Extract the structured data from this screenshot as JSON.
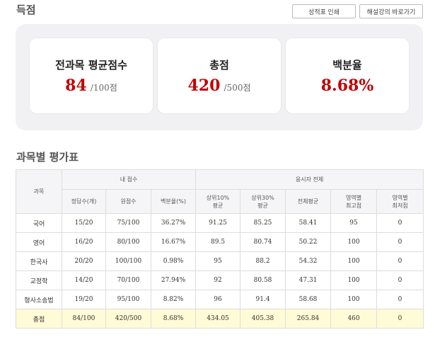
{
  "header": {
    "title": "득점",
    "print_button": "성적표 인쇄",
    "solution_button": "해설강의 바로가기"
  },
  "summary": [
    {
      "label": "전과목 평균점수",
      "value": "84",
      "unit": "/100점"
    },
    {
      "label": "총점",
      "value": "420",
      "unit": "/500점"
    },
    {
      "label": "백분율",
      "value": "8.68%",
      "unit": ""
    }
  ],
  "eval": {
    "title": "과목별 평가표",
    "group_subject": "과목",
    "group_my": "내 점수",
    "group_all": "응시자 전체",
    "columns": [
      "정답수(개)",
      "원점수",
      "백분율(%)",
      "상위10%\n평균",
      "상위30%\n평균",
      "전체평균",
      "영역별\n최고점",
      "영역별\n최저점"
    ],
    "rows": [
      [
        "국어",
        "15/20",
        "75/100",
        "36.27%",
        "91.25",
        "85.25",
        "58.41",
        "95",
        "0"
      ],
      [
        "영어",
        "16/20",
        "80/100",
        "16.67%",
        "89.5",
        "80.74",
        "50.22",
        "100",
        "0"
      ],
      [
        "한국사",
        "20/20",
        "100/100",
        "0.98%",
        "95",
        "88.2",
        "54.32",
        "100",
        "0"
      ],
      [
        "교정학",
        "14/20",
        "70/100",
        "27.94%",
        "92",
        "80.58",
        "47.31",
        "100",
        "0"
      ],
      [
        "형사소송법",
        "19/20",
        "95/100",
        "8.82%",
        "96",
        "91.4",
        "58.68",
        "100",
        "0"
      ],
      [
        "총점",
        "84/100",
        "420/500",
        "8.68%",
        "434.05",
        "405.38",
        "265.84",
        "460",
        "0"
      ]
    ]
  }
}
